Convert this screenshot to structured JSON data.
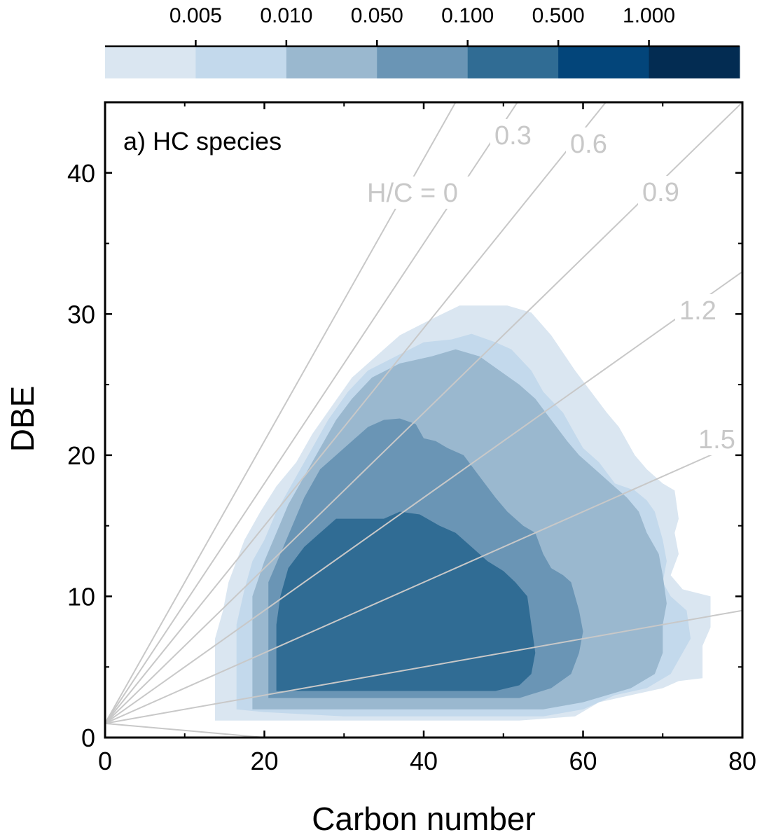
{
  "chart_data": {
    "type": "heatmap",
    "title": "",
    "panel_label": "a) HC species",
    "xlabel": "Carbon number",
    "ylabel": "DBE",
    "xlim": [
      0,
      80
    ],
    "ylim": [
      0,
      45
    ],
    "x_ticks": [
      0,
      20,
      40,
      60,
      80
    ],
    "y_ticks": [
      0,
      10,
      20,
      30,
      40
    ],
    "grid": false,
    "colorbar": {
      "position": "top",
      "tick_labels": [
        "0.005",
        "0.010",
        "0.050",
        "0.100",
        "0.500",
        "1.000"
      ],
      "colors": [
        "#dae6f1",
        "#c3d9ec",
        "#9ab8cf",
        "#6a95b5",
        "#306c94",
        "#03457a",
        "#032c52"
      ]
    },
    "hc_ratio_lines": {
      "origin": [
        0,
        1
      ],
      "color": "#c8c8c8",
      "lines": [
        {
          "label": "H/C = 0",
          "hc": 0
        },
        {
          "label": "0.3",
          "hc": 0.3
        },
        {
          "label": "0.6",
          "hc": 0.6
        },
        {
          "label": "0.9",
          "hc": 0.9
        },
        {
          "label": "1.2",
          "hc": 1.2
        },
        {
          "label": "1.5",
          "hc": 1.5
        },
        {
          "hc": 1.8
        },
        {
          "hc": 2.1
        }
      ]
    },
    "regions": [
      {
        "level": 1,
        "points": [
          [
            13.8,
            1.2
          ],
          [
            13.8,
            7
          ],
          [
            14.8,
            9
          ],
          [
            15.5,
            11
          ],
          [
            17.5,
            14
          ],
          [
            19.5,
            16
          ],
          [
            21.5,
            17.8
          ],
          [
            24,
            19.5
          ],
          [
            26,
            21.5
          ],
          [
            28.5,
            23.5
          ],
          [
            31,
            25.5
          ],
          [
            34,
            27
          ],
          [
            37,
            28.5
          ],
          [
            40.5,
            29.5
          ],
          [
            44.5,
            30.6
          ],
          [
            47,
            30.6
          ],
          [
            50.5,
            30.6
          ],
          [
            53.5,
            30.1
          ],
          [
            56,
            28.5
          ],
          [
            59,
            26
          ],
          [
            61,
            24.5
          ],
          [
            63,
            23
          ],
          [
            64.5,
            22
          ],
          [
            66.5,
            20
          ],
          [
            68,
            19
          ],
          [
            70,
            18
          ],
          [
            71.5,
            17.5
          ],
          [
            72,
            15.5
          ],
          [
            71.5,
            14.5
          ],
          [
            72,
            13
          ],
          [
            71,
            11.5
          ],
          [
            72.5,
            10.5
          ],
          [
            76,
            10
          ],
          [
            76,
            7.8
          ],
          [
            75,
            6.5
          ],
          [
            75,
            4.2
          ],
          [
            72,
            4
          ],
          [
            70,
            3.5
          ],
          [
            66,
            3
          ],
          [
            62,
            2.5
          ],
          [
            59,
            1.5
          ],
          [
            52,
            1.2
          ],
          [
            40,
            1.2
          ],
          [
            25,
            1.2
          ]
        ]
      },
      {
        "level": 2,
        "points": [
          [
            16.5,
            2
          ],
          [
            16.5,
            8
          ],
          [
            17.5,
            10.5
          ],
          [
            18.5,
            12.5
          ],
          [
            20,
            14
          ],
          [
            21.5,
            16
          ],
          [
            23.5,
            18
          ],
          [
            26,
            20.5
          ],
          [
            28,
            22.5
          ],
          [
            30.5,
            24.5
          ],
          [
            33,
            26
          ],
          [
            36.5,
            27
          ],
          [
            40,
            28
          ],
          [
            43.5,
            28.2
          ],
          [
            46,
            28.6
          ],
          [
            49,
            28
          ],
          [
            51,
            27.5
          ],
          [
            53.5,
            26
          ],
          [
            55,
            24.5
          ],
          [
            57.5,
            23
          ],
          [
            58.5,
            22
          ],
          [
            60,
            20.5
          ],
          [
            62,
            19.5
          ],
          [
            64,
            18
          ],
          [
            66.5,
            17.5
          ],
          [
            68,
            16.8
          ],
          [
            69,
            16
          ],
          [
            70,
            14
          ],
          [
            70.5,
            12.5
          ],
          [
            70,
            11
          ],
          [
            71,
            10
          ],
          [
            73,
            9
          ],
          [
            73.5,
            7
          ],
          [
            72,
            5.5
          ],
          [
            71,
            4.5
          ],
          [
            68,
            3.5
          ],
          [
            64,
            3
          ],
          [
            60,
            2
          ],
          [
            55,
            1.5
          ],
          [
            45,
            1.5
          ],
          [
            30,
            1.5
          ],
          [
            20,
            1.8
          ]
        ]
      },
      {
        "level": 3,
        "points": [
          [
            18.5,
            2
          ],
          [
            18.5,
            10
          ],
          [
            20,
            12.5
          ],
          [
            21.5,
            14.5
          ],
          [
            23,
            16.5
          ],
          [
            25,
            18.5
          ],
          [
            27,
            20.5
          ],
          [
            29,
            22.5
          ],
          [
            31,
            24
          ],
          [
            33.5,
            25.5
          ],
          [
            37,
            26.5
          ],
          [
            41,
            27
          ],
          [
            44,
            27.5
          ],
          [
            47,
            27
          ],
          [
            49.5,
            26
          ],
          [
            52,
            25
          ],
          [
            54,
            24
          ],
          [
            56,
            22.5
          ],
          [
            58,
            21
          ],
          [
            59.5,
            20
          ],
          [
            61.5,
            19
          ],
          [
            63.5,
            18
          ],
          [
            65.5,
            17
          ],
          [
            67,
            16
          ],
          [
            68,
            14.5
          ],
          [
            69.5,
            13
          ],
          [
            70,
            11.5
          ],
          [
            70.5,
            9.5
          ],
          [
            70,
            8
          ],
          [
            70,
            6
          ],
          [
            69,
            4.5
          ],
          [
            66,
            3.5
          ],
          [
            60,
            2.5
          ],
          [
            55,
            2
          ],
          [
            45,
            2
          ],
          [
            30,
            2
          ],
          [
            22,
            2
          ]
        ]
      },
      {
        "level": 4,
        "points": [
          [
            20.5,
            2.8
          ],
          [
            20.5,
            11
          ],
          [
            22,
            13
          ],
          [
            23.5,
            15
          ],
          [
            25,
            17
          ],
          [
            27,
            19
          ],
          [
            29,
            20
          ],
          [
            31,
            21
          ],
          [
            33,
            22
          ],
          [
            35,
            22.5
          ],
          [
            37,
            22.6
          ],
          [
            39,
            22.2
          ],
          [
            40,
            21.2
          ],
          [
            41.5,
            21
          ],
          [
            43,
            20.5
          ],
          [
            45,
            20
          ],
          [
            47,
            18.5
          ],
          [
            49,
            17
          ],
          [
            50.5,
            16
          ],
          [
            52.5,
            15
          ],
          [
            54,
            14.5
          ],
          [
            55,
            13
          ],
          [
            56,
            12
          ],
          [
            57.5,
            11.5
          ],
          [
            58.5,
            11
          ],
          [
            59.5,
            9
          ],
          [
            60,
            7.5
          ],
          [
            59.5,
            6
          ],
          [
            58.5,
            4.5
          ],
          [
            56,
            3.5
          ],
          [
            52,
            2.8
          ],
          [
            45,
            2.8
          ],
          [
            30,
            2.8
          ]
        ]
      },
      {
        "level": 5,
        "points": [
          [
            21.5,
            3.3
          ],
          [
            21.5,
            8
          ],
          [
            22,
            10
          ],
          [
            23,
            12
          ],
          [
            25,
            13.5
          ],
          [
            27,
            14.5
          ],
          [
            29,
            15.5
          ],
          [
            32,
            15.5
          ],
          [
            35,
            15.5
          ],
          [
            37,
            16
          ],
          [
            39.5,
            15.8
          ],
          [
            42,
            15
          ],
          [
            44,
            14.5
          ],
          [
            46,
            13.5
          ],
          [
            48,
            12.5
          ],
          [
            50,
            11.8
          ],
          [
            51.5,
            11
          ],
          [
            53,
            10
          ],
          [
            53.5,
            8
          ],
          [
            54,
            6
          ],
          [
            53.5,
            4.5
          ],
          [
            52,
            3.7
          ],
          [
            49,
            3.3
          ],
          [
            40,
            3.3
          ],
          [
            30,
            3.3
          ]
        ]
      }
    ]
  }
}
